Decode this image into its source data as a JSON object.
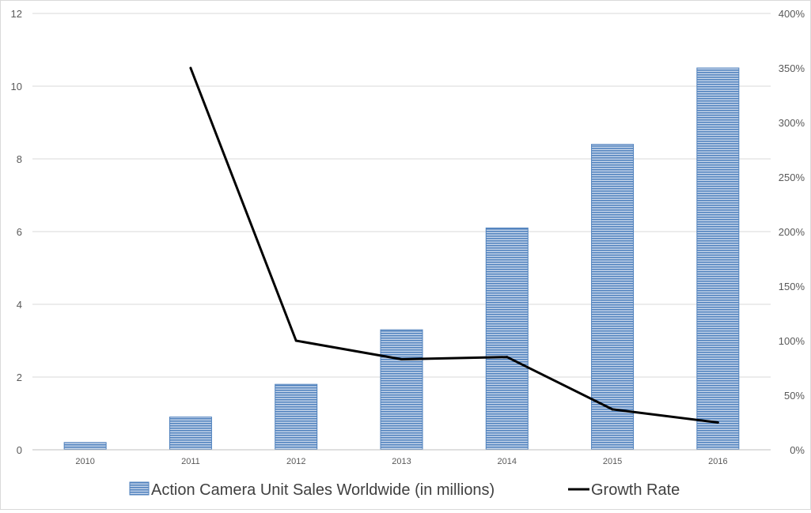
{
  "chart_data": {
    "type": "bar",
    "categories": [
      "2010",
      "2011",
      "2012",
      "2013",
      "2014",
      "2015",
      "2016"
    ],
    "series": [
      {
        "name": "Action Camera Unit Sales Worldwide (in millions)",
        "type": "bar",
        "axis": "left",
        "color": "#4f81bd",
        "values": [
          0.2,
          0.9,
          1.8,
          3.3,
          6.1,
          8.4,
          10.5
        ]
      },
      {
        "name": "Growth Rate",
        "type": "line",
        "axis": "right",
        "color": "#000000",
        "values": [
          null,
          350,
          100,
          83,
          85,
          37,
          25
        ]
      }
    ],
    "y_left": {
      "lim": [
        0,
        12
      ],
      "ticks": [
        0,
        2,
        4,
        6,
        8,
        10,
        12
      ],
      "tick_labels": [
        "0",
        "2",
        "4",
        "6",
        "8",
        "10",
        "12"
      ]
    },
    "y_right": {
      "lim": [
        0,
        400
      ],
      "ticks": [
        0,
        50,
        100,
        150,
        200,
        250,
        300,
        350,
        400
      ],
      "tick_labels": [
        "0%",
        "50%",
        "100%",
        "150%",
        "200%",
        "250%",
        "300%",
        "350%",
        "400%"
      ]
    },
    "grid": true,
    "legend": "bottom",
    "title": "",
    "xlabel": "",
    "ylabel": ""
  }
}
